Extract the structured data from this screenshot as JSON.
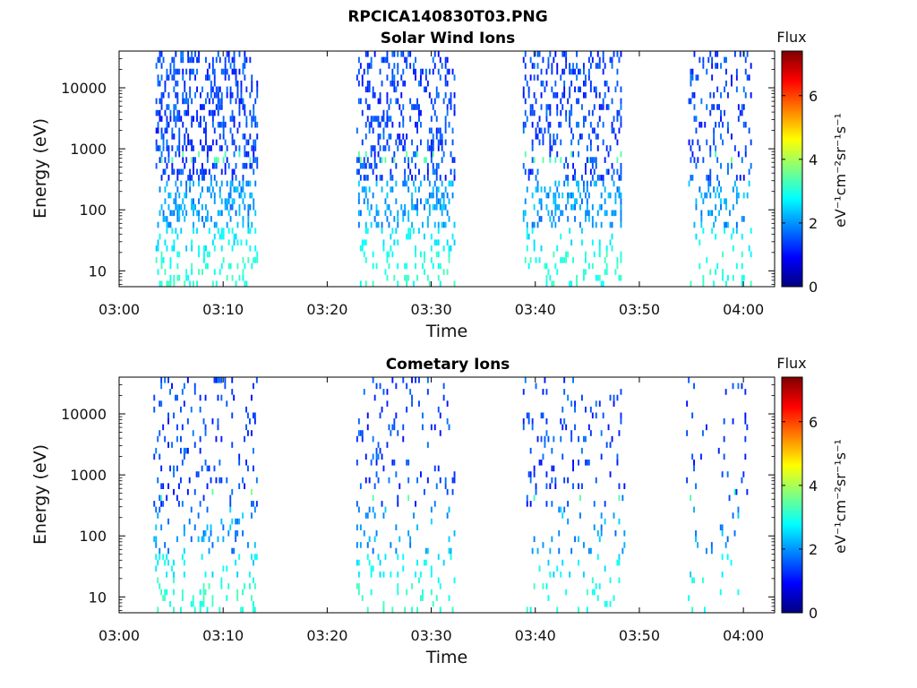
{
  "figure_title": "RPCICA140830T03.PNG",
  "colorbar": {
    "title": "Flux",
    "label": "eV⁻¹cm⁻²sr⁻¹s⁻¹",
    "range": [
      0,
      7.4
    ],
    "ticks": [
      "0",
      "2",
      "4",
      "6"
    ],
    "colormap": "jet"
  },
  "chart_data": [
    {
      "type": "heatmap",
      "title": "Solar Wind Ions",
      "xlabel": "Time",
      "ylabel": "Energy (eV)",
      "x_ticks": [
        "03:00",
        "03:10",
        "03:20",
        "03:30",
        "03:40",
        "03:50",
        "04:00"
      ],
      "y_ticks": [
        "10",
        "100",
        "1000",
        "10000"
      ],
      "y_scale": "log",
      "xlim_minutes_after_03_00": [
        0,
        63
      ],
      "ylim_eV": [
        5.5,
        40000
      ],
      "seed": 7,
      "bursts": [
        {
          "start_minute": 3.5,
          "end_minute": 13.3,
          "density": 0.55
        },
        {
          "start_minute": 22.8,
          "end_minute": 32.3,
          "density": 0.5
        },
        {
          "start_minute": 38.8,
          "end_minute": 48.3,
          "density": 0.42
        },
        {
          "start_minute": 54.7,
          "end_minute": 60.7,
          "density": 0.3
        }
      ],
      "peak_energy_eV": 750
    },
    {
      "type": "heatmap",
      "title": "Cometary Ions",
      "xlabel": "Time",
      "ylabel": "Energy (eV)",
      "x_ticks": [
        "03:00",
        "03:10",
        "03:20",
        "03:30",
        "03:40",
        "03:50",
        "04:00"
      ],
      "y_ticks": [
        "10",
        "100",
        "1000",
        "10000"
      ],
      "y_scale": "log",
      "xlim_minutes_after_03_00": [
        0,
        63
      ],
      "ylim_eV": [
        5.5,
        40000
      ],
      "seed": 23,
      "bursts": [
        {
          "start_minute": 3.3,
          "end_minute": 13.2,
          "density": 0.3
        },
        {
          "start_minute": 22.8,
          "end_minute": 32.3,
          "density": 0.25
        },
        {
          "start_minute": 38.8,
          "end_minute": 48.5,
          "density": 0.2
        },
        {
          "start_minute": 54.5,
          "end_minute": 60.3,
          "density": 0.16
        }
      ],
      "peak_energy_eV": 450
    }
  ]
}
